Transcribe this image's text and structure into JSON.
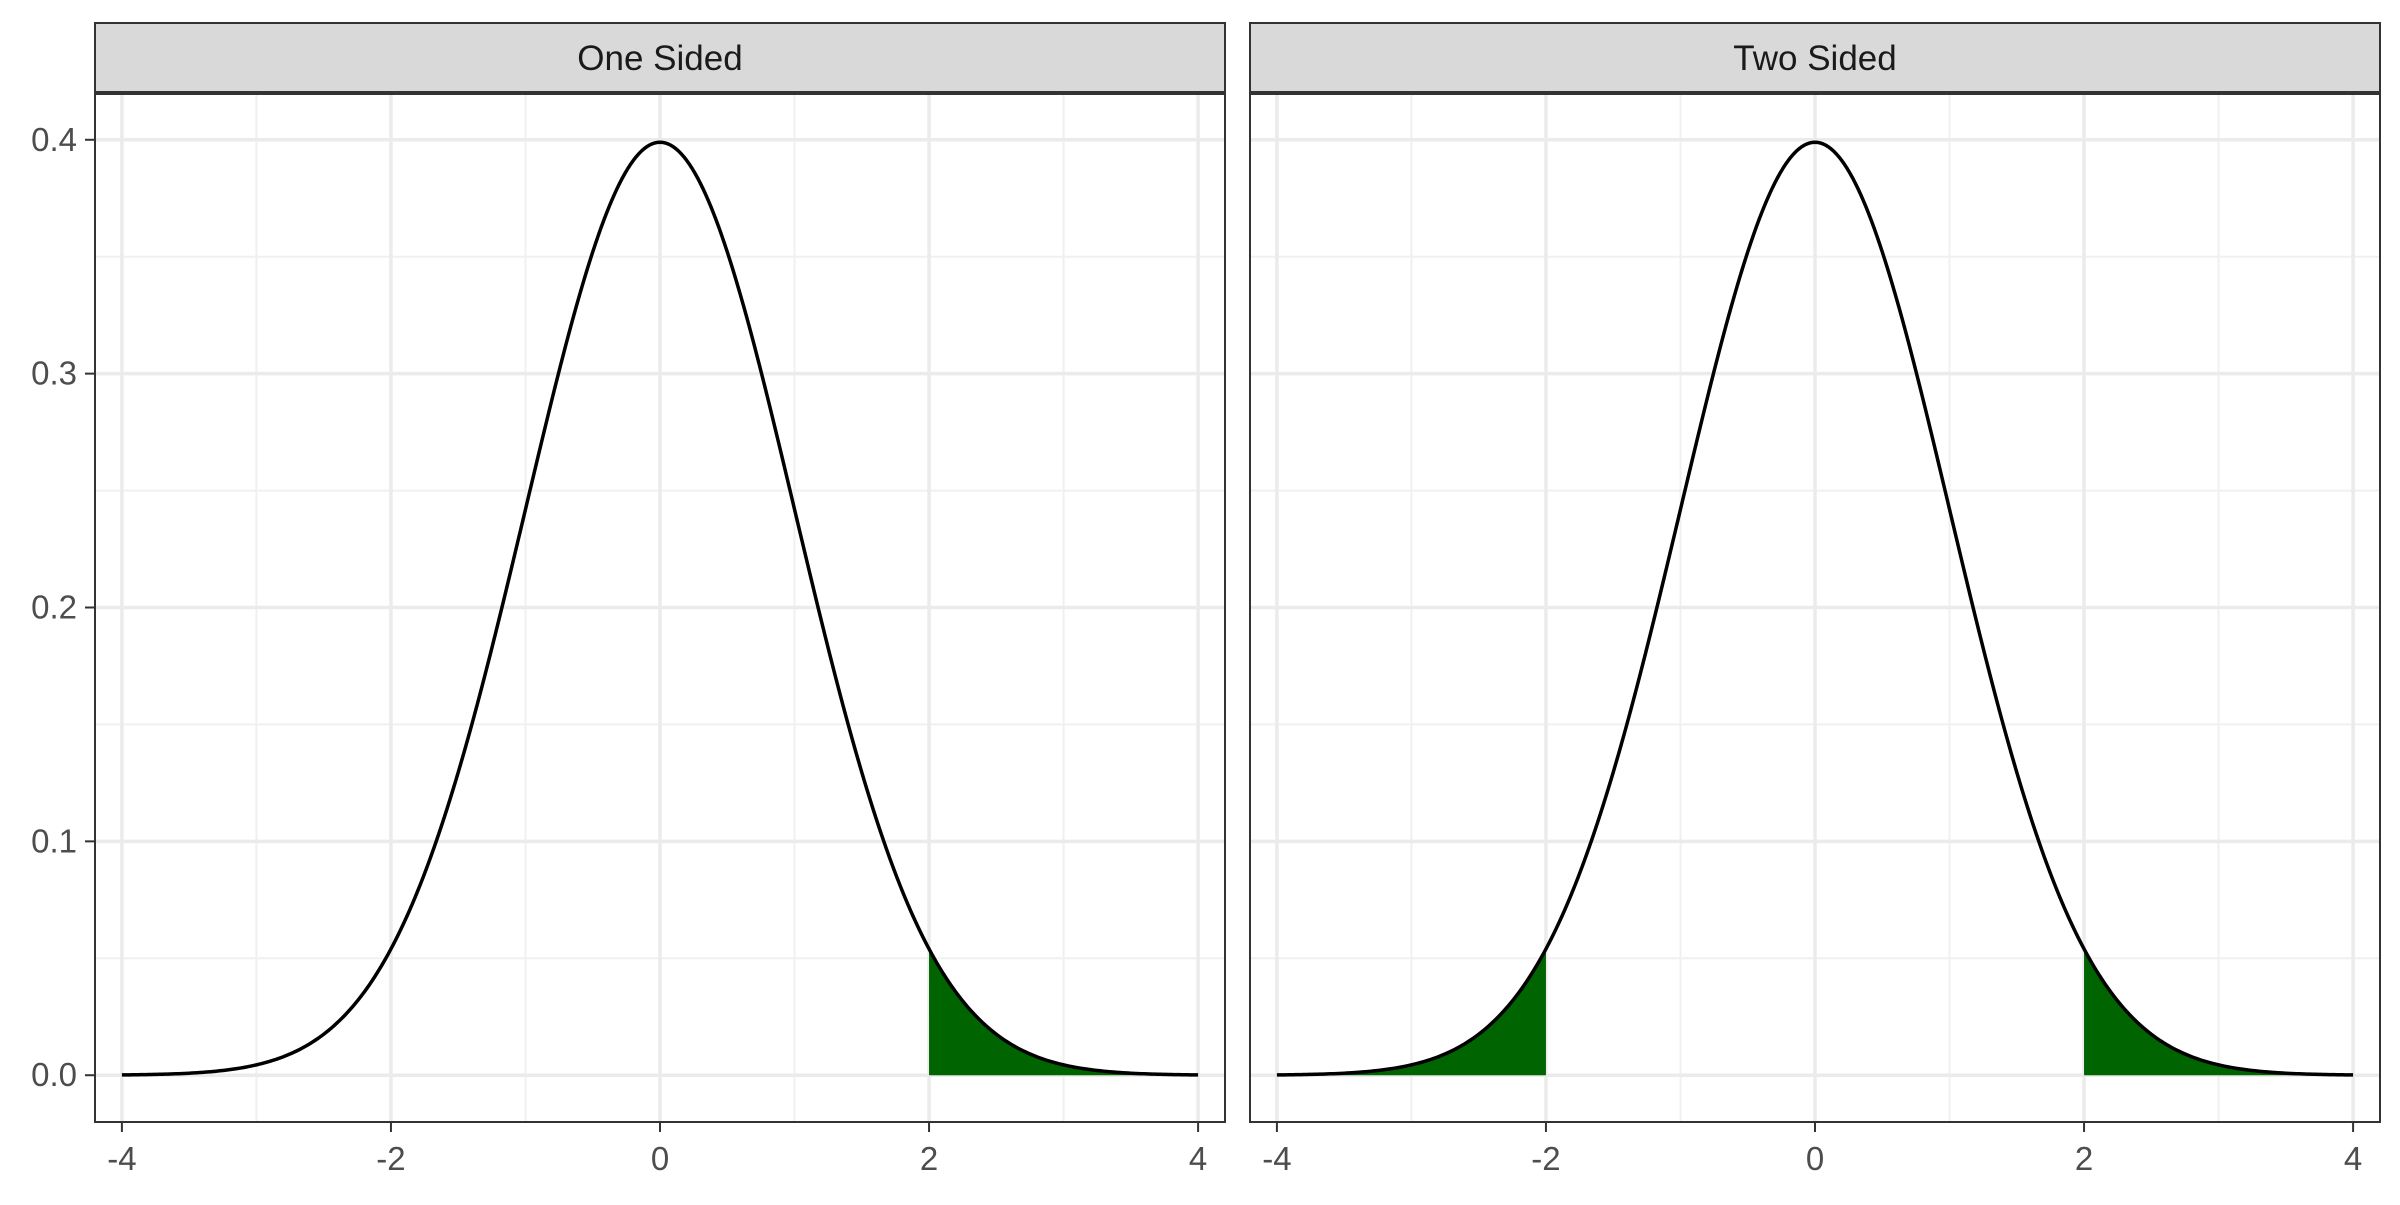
{
  "chart_data": {
    "type": "area",
    "description_of_curve": "standard normal density",
    "x": [
      -4,
      -3.8,
      -3.6,
      -3.4,
      -3.2,
      -3.0,
      -2.8,
      -2.6,
      -2.4,
      -2.2,
      -2.0,
      -1.8,
      -1.6,
      -1.4,
      -1.2,
      -1.0,
      -0.8,
      -0.6,
      -0.4,
      -0.2,
      0.0,
      0.2,
      0.4,
      0.6,
      0.8,
      1.0,
      1.2,
      1.4,
      1.6,
      1.8,
      2.0,
      2.2,
      2.4,
      2.6,
      2.8,
      3.0,
      3.2,
      3.4,
      3.6,
      3.8,
      4.0
    ],
    "y": [
      0.0001,
      0.0003,
      0.0006,
      0.0012,
      0.0024,
      0.0044,
      0.0079,
      0.0136,
      0.0224,
      0.0355,
      0.054,
      0.079,
      0.1109,
      0.1497,
      0.1942,
      0.242,
      0.2897,
      0.3332,
      0.3683,
      0.391,
      0.3989,
      0.391,
      0.3683,
      0.3332,
      0.2897,
      0.242,
      0.1942,
      0.1497,
      0.1109,
      0.079,
      0.054,
      0.0355,
      0.0224,
      0.0136,
      0.0079,
      0.0044,
      0.0024,
      0.0012,
      0.0006,
      0.0003,
      0.0001
    ],
    "xlim": [
      -4.2,
      4.2
    ],
    "ylim": [
      -0.02,
      0.42
    ],
    "x_ticks": [
      -4,
      -2,
      0,
      2,
      4
    ],
    "x_tick_labels": [
      "-4",
      "-2",
      "0",
      "2",
      "4"
    ],
    "y_ticks": [
      0.0,
      0.1,
      0.2,
      0.3,
      0.4
    ],
    "y_tick_labels": [
      "0.0",
      "0.1",
      "0.2",
      "0.3",
      "0.4"
    ],
    "grid": true,
    "fill_color": "#006400",
    "line_color": "#000000",
    "panels": [
      {
        "title": "One Sided",
        "shaded_regions": [
          [
            2,
            4
          ]
        ]
      },
      {
        "title": "Two Sided",
        "shaded_regions": [
          [
            -4,
            -2
          ],
          [
            2,
            4
          ]
        ]
      }
    ]
  }
}
